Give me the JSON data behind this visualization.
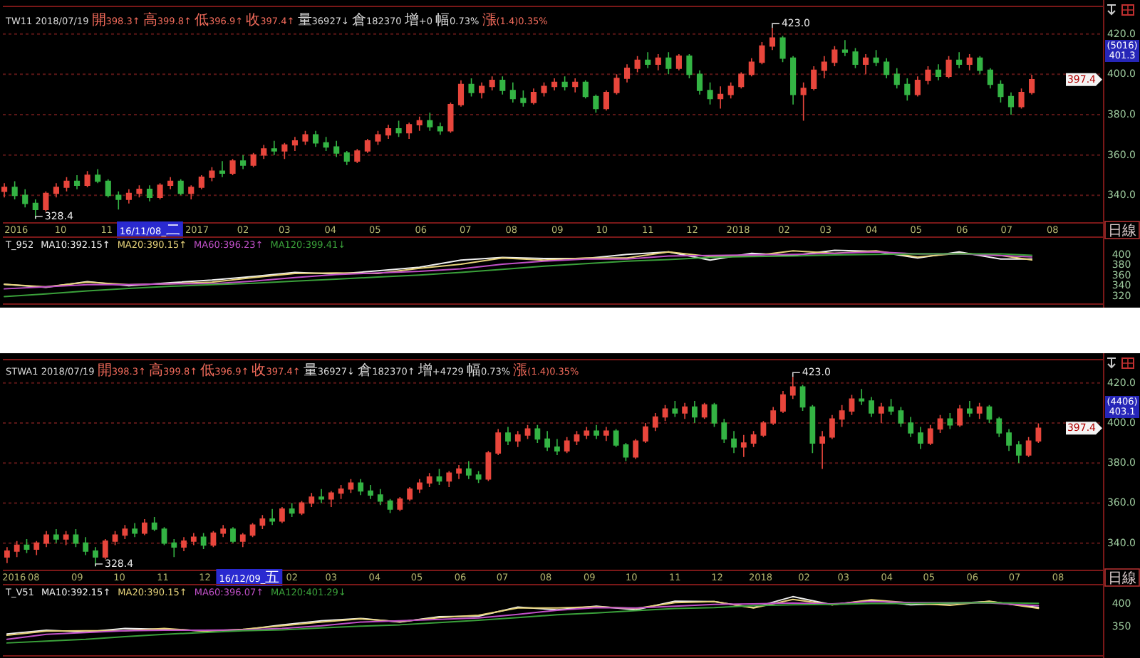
{
  "chart_data": [
    {
      "type": "candlestick",
      "subtitle": "TW11 2018/07/19 開398.3↑ 高399.8↑ 低396.9↑ 收397.4↑ 量36927↓ 倉182370 增+0 幅0.73% 漲(1.4)0.35%",
      "x": [
        "2016-08-24",
        "2016-08-31",
        "2016-09-07",
        "2016-09-14",
        "2016-09-21",
        "2016-09-28",
        "2016-10-05",
        "2016-10-12",
        "2016-10-19",
        "2016-10-26",
        "2016-11-02",
        "2016-11-09",
        "2016-11-16",
        "2016-11-23",
        "2016-11-30",
        "2016-12-07",
        "2016-12-14",
        "2016-12-21",
        "2016-12-28",
        "2017-01-04",
        "2017-01-11",
        "2017-01-18",
        "2017-01-25",
        "2017-02-01",
        "2017-02-08",
        "2017-02-15",
        "2017-02-22",
        "2017-03-01",
        "2017-03-08",
        "2017-03-15",
        "2017-03-22",
        "2017-03-29",
        "2017-04-05",
        "2017-04-12",
        "2017-04-19",
        "2017-04-26",
        "2017-05-03",
        "2017-05-10",
        "2017-05-17",
        "2017-05-24",
        "2017-05-31",
        "2017-06-07",
        "2017-06-14",
        "2017-06-21",
        "2017-06-28",
        "2017-07-05",
        "2017-07-12",
        "2017-07-19",
        "2017-07-26",
        "2017-08-02",
        "2017-08-09",
        "2017-08-16",
        "2017-08-23",
        "2017-08-30",
        "2017-09-06",
        "2017-09-13",
        "2017-09-20",
        "2017-09-27",
        "2017-10-04",
        "2017-10-11",
        "2017-10-18",
        "2017-10-25",
        "2017-11-01",
        "2017-11-08",
        "2017-11-15",
        "2017-11-22",
        "2017-11-29",
        "2017-12-06",
        "2017-12-13",
        "2017-12-20",
        "2017-12-27",
        "2018-01-03",
        "2018-01-10",
        "2018-01-17",
        "2018-01-24",
        "2018-01-31",
        "2018-02-07",
        "2018-02-14",
        "2018-02-21",
        "2018-02-28",
        "2018-03-07",
        "2018-03-14",
        "2018-03-21",
        "2018-03-28",
        "2018-04-04",
        "2018-04-11",
        "2018-04-18",
        "2018-04-25",
        "2018-05-02",
        "2018-05-09",
        "2018-05-16",
        "2018-05-23",
        "2018-05-30",
        "2018-06-06",
        "2018-06-13",
        "2018-06-20",
        "2018-06-27",
        "2018-07-04",
        "2018-07-11",
        "2018-07-18"
      ],
      "ohlc": [
        [
          342,
          346,
          339,
          344
        ],
        [
          344,
          347,
          338,
          340
        ],
        [
          340,
          343,
          334,
          336
        ],
        [
          336,
          338,
          328.4,
          333
        ],
        [
          333,
          342,
          332,
          341
        ],
        [
          341,
          346,
          339,
          344
        ],
        [
          344,
          349,
          342,
          347
        ],
        [
          347,
          350,
          343,
          345
        ],
        [
          345,
          352,
          344,
          350
        ],
        [
          350,
          353,
          346,
          347
        ],
        [
          347,
          348,
          339,
          340
        ],
        [
          340,
          342,
          333,
          338
        ],
        [
          338,
          343,
          336,
          341
        ],
        [
          341,
          345,
          339,
          343
        ],
        [
          343,
          345,
          337,
          339
        ],
        [
          339,
          346,
          338,
          345
        ],
        [
          345,
          349,
          343,
          347
        ],
        [
          347,
          348,
          340,
          341
        ],
        [
          341,
          345,
          338,
          344
        ],
        [
          344,
          350,
          343,
          349
        ],
        [
          349,
          354,
          347,
          352
        ],
        [
          352,
          357,
          349,
          351
        ],
        [
          351,
          358,
          350,
          357
        ],
        [
          357,
          360,
          353,
          355
        ],
        [
          355,
          361,
          354,
          360
        ],
        [
          360,
          365,
          358,
          363
        ],
        [
          363,
          367,
          360,
          362
        ],
        [
          362,
          366,
          358,
          365
        ],
        [
          365,
          369,
          362,
          367
        ],
        [
          367,
          372,
          365,
          370
        ],
        [
          370,
          372,
          364,
          366
        ],
        [
          366,
          369,
          362,
          364
        ],
        [
          364,
          367,
          359,
          361
        ],
        [
          361,
          362,
          355,
          357
        ],
        [
          357,
          363,
          356,
          362
        ],
        [
          362,
          368,
          361,
          367
        ],
        [
          367,
          372,
          365,
          370
        ],
        [
          370,
          375,
          368,
          373
        ],
        [
          373,
          377,
          369,
          371
        ],
        [
          371,
          376,
          368,
          375
        ],
        [
          375,
          379,
          372,
          377
        ],
        [
          377,
          381,
          372,
          374
        ],
        [
          374,
          376,
          370,
          372
        ],
        [
          372,
          386,
          371,
          385
        ],
        [
          385,
          397,
          384,
          395
        ],
        [
          395,
          398,
          389,
          391
        ],
        [
          391,
          396,
          388,
          394
        ],
        [
          394,
          399,
          392,
          397
        ],
        [
          397,
          399,
          390,
          392
        ],
        [
          392,
          396,
          386,
          388
        ],
        [
          388,
          392,
          384,
          386
        ],
        [
          386,
          393,
          385,
          391
        ],
        [
          391,
          396,
          389,
          394
        ],
        [
          394,
          398,
          392,
          396
        ],
        [
          396,
          399,
          392,
          394
        ],
        [
          394,
          398,
          391,
          396
        ],
        [
          396,
          397,
          388,
          389
        ],
        [
          389,
          390,
          381,
          383
        ],
        [
          383,
          392,
          382,
          391
        ],
        [
          391,
          400,
          390,
          398
        ],
        [
          398,
          405,
          396,
          403
        ],
        [
          403,
          409,
          401,
          407
        ],
        [
          407,
          411,
          403,
          405
        ],
        [
          405,
          410,
          402,
          408
        ],
        [
          408,
          411,
          400,
          403
        ],
        [
          403,
          410,
          402,
          409
        ],
        [
          409,
          410,
          398,
          400
        ],
        [
          400,
          402,
          390,
          392
        ],
        [
          392,
          396,
          385,
          388
        ],
        [
          388,
          394,
          383,
          390
        ],
        [
          390,
          396,
          388,
          394
        ],
        [
          394,
          401,
          393,
          400
        ],
        [
          400,
          408,
          399,
          406
        ],
        [
          406,
          416,
          405,
          414
        ],
        [
          414,
          423,
          412,
          418
        ],
        [
          418,
          419,
          406,
          408
        ],
        [
          408,
          409,
          385,
          390
        ],
        [
          390,
          396,
          377,
          393
        ],
        [
          393,
          404,
          392,
          402
        ],
        [
          402,
          409,
          398,
          406
        ],
        [
          406,
          414,
          404,
          412
        ],
        [
          412,
          417,
          409,
          411
        ],
        [
          411,
          413,
          403,
          405
        ],
        [
          405,
          410,
          400,
          408
        ],
        [
          408,
          412,
          404,
          406
        ],
        [
          406,
          408,
          398,
          400
        ],
        [
          400,
          403,
          393,
          395
        ],
        [
          395,
          398,
          387,
          390
        ],
        [
          390,
          399,
          389,
          397
        ],
        [
          397,
          404,
          395,
          402
        ],
        [
          402,
          405,
          397,
          399
        ],
        [
          399,
          409,
          398,
          407
        ],
        [
          407,
          411,
          403,
          405
        ],
        [
          405,
          410,
          402,
          408
        ],
        [
          408,
          409,
          400,
          402
        ],
        [
          402,
          403,
          393,
          395
        ],
        [
          395,
          397,
          386,
          389
        ],
        [
          389,
          391,
          380,
          384
        ],
        [
          384,
          393,
          383,
          391
        ],
        [
          391,
          399.8,
          390,
          397.4
        ]
      ],
      "xlim": [
        "2016-08-23",
        "2018-09-04"
      ],
      "xticks": [
        {
          "value": "2016-09-01",
          "label": "2016"
        },
        {
          "value": "2016-10-01",
          "label": "10"
        },
        {
          "value": "2016-11-01",
          "label": "11"
        },
        {
          "value": "2017-01-01",
          "label": "2017"
        },
        {
          "value": "2017-02-01",
          "label": "02"
        },
        {
          "value": "2017-03-01",
          "label": "03"
        },
        {
          "value": "2017-04-01",
          "label": "04"
        },
        {
          "value": "2017-05-01",
          "label": "05"
        },
        {
          "value": "2017-06-01",
          "label": "06"
        },
        {
          "value": "2017-07-01",
          "label": "07"
        },
        {
          "value": "2017-08-01",
          "label": "08"
        },
        {
          "value": "2017-09-01",
          "label": "09"
        },
        {
          "value": "2017-10-01",
          "label": "10"
        },
        {
          "value": "2017-11-01",
          "label": "11"
        },
        {
          "value": "2017-12-01",
          "label": "12"
        },
        {
          "value": "2018-01-01",
          "label": "2018"
        },
        {
          "value": "2018-02-01",
          "label": "02"
        },
        {
          "value": "2018-03-01",
          "label": "03"
        },
        {
          "value": "2018-04-01",
          "label": "04"
        },
        {
          "value": "2018-05-01",
          "label": "05"
        },
        {
          "value": "2018-06-01",
          "label": "06"
        },
        {
          "value": "2018-07-01",
          "label": "07"
        },
        {
          "value": "2018-08-01",
          "label": "08"
        }
      ],
      "ylim": [
        326,
        434
      ],
      "yticks": [
        {
          "value": 340,
          "label": "340.0"
        },
        {
          "value": 360,
          "label": "360.0"
        },
        {
          "value": 380,
          "label": "380.0"
        },
        {
          "value": 400,
          "label": "400.0"
        },
        {
          "value": 420,
          "label": "420.0"
        }
      ],
      "grid": "y",
      "annotations": [
        {
          "text": "423.0",
          "x": "2018-01-24",
          "y": 423.0
        },
        {
          "text": "328.4",
          "x": "2016-09-14",
          "y": 328.4
        },
        "16/11/08_二",
        "(5016)",
        "401.3",
        {
          "text": "397.4",
          "y": 397.4
        },
        "日線"
      ]
    },
    {
      "type": "line",
      "title": "T_952",
      "x": [
        "2016-08-24",
        "2016-09-21",
        "2016-10-19",
        "2016-11-16",
        "2016-12-14",
        "2017-01-11",
        "2017-02-08",
        "2017-03-08",
        "2017-04-05",
        "2017-05-03",
        "2017-05-31",
        "2017-06-28",
        "2017-07-26",
        "2017-08-23",
        "2017-09-20",
        "2017-10-18",
        "2017-11-15",
        "2017-12-13",
        "2018-01-10",
        "2018-02-07",
        "2018-03-07",
        "2018-04-04",
        "2018-05-02",
        "2018-05-30",
        "2018-06-27",
        "2018-07-18"
      ],
      "series": [
        {
          "name": "MA10:392.15↑",
          "color": "#f0f0f0",
          "values": [
            343,
            337,
            348,
            340,
            346,
            351,
            358,
            366,
            363,
            369,
            376,
            390,
            395,
            393,
            393,
            401,
            406,
            390,
            403,
            399,
            409,
            407,
            394,
            406,
            392,
            392.15
          ]
        },
        {
          "name": "MA20:390.15↑",
          "color": "#e6d27a",
          "values": [
            343,
            338,
            347,
            342,
            344,
            347,
            356,
            364,
            365,
            364,
            374,
            382,
            394,
            390,
            394,
            394,
            406,
            397,
            398,
            408,
            403,
            408,
            396,
            403,
            399,
            390.15
          ]
        },
        {
          "name": "MA60:396.23↑",
          "color": "#c050c8",
          "values": [
            334,
            338,
            342,
            342,
            344,
            344,
            349,
            356,
            362,
            365,
            368,
            373,
            382,
            388,
            392,
            392,
            398,
            399,
            400,
            401,
            403,
            406,
            402,
            402,
            399,
            396.23
          ]
        },
        {
          "name": "MA120:399.41↓",
          "color": "#3aa03a",
          "values": [
            319,
            324,
            330,
            335,
            339,
            342,
            345,
            349,
            353,
            357,
            361,
            366,
            372,
            378,
            383,
            388,
            391,
            395,
            397,
            398,
            400,
            401,
            402,
            402,
            402,
            399.41
          ]
        }
      ],
      "xlim": [
        "2016-08-23",
        "2018-09-04"
      ],
      "ylim": [
        303,
        436
      ],
      "yticks": [
        320,
        340,
        360,
        380,
        400
      ],
      "tick_labels": "y",
      "legend": "top left"
    },
    {
      "type": "candlestick",
      "subtitle": "STWA1 2018/07/19 開398.3↑ 高399.8↑ 低396.9↑ 收397.4↑ 量36927↓ 倉182370↑ 增+4729 幅0.73% 漲(1.4)0.35%",
      "x": [
        "2016-07-13",
        "2016-07-20",
        "2016-07-27",
        "2016-08-03",
        "2016-08-10",
        "2016-08-17",
        "2016-08-24",
        "2016-08-31",
        "2016-09-07",
        "2016-09-14",
        "2016-09-21",
        "2016-09-28",
        "2016-10-05",
        "2016-10-12",
        "2016-10-19",
        "2016-10-26",
        "2016-11-02",
        "2016-11-09",
        "2016-11-16",
        "2016-11-23",
        "2016-11-30",
        "2016-12-07",
        "2016-12-14",
        "2016-12-21",
        "2016-12-28",
        "2017-01-04",
        "2017-01-11",
        "2017-01-18",
        "2017-01-25",
        "2017-02-01",
        "2017-02-08",
        "2017-02-15",
        "2017-02-22",
        "2017-03-01",
        "2017-03-08",
        "2017-03-15",
        "2017-03-22",
        "2017-03-29",
        "2017-04-05",
        "2017-04-12",
        "2017-04-19",
        "2017-04-26",
        "2017-05-03",
        "2017-05-10",
        "2017-05-17",
        "2017-05-24",
        "2017-05-31",
        "2017-06-07",
        "2017-06-14",
        "2017-06-21",
        "2017-06-28",
        "2017-07-05",
        "2017-07-12",
        "2017-07-19",
        "2017-07-26",
        "2017-08-02",
        "2017-08-09",
        "2017-08-16",
        "2017-08-23",
        "2017-08-30",
        "2017-09-06",
        "2017-09-13",
        "2017-09-20",
        "2017-09-27",
        "2017-10-04",
        "2017-10-11",
        "2017-10-18",
        "2017-10-25",
        "2017-11-01",
        "2017-11-08",
        "2017-11-15",
        "2017-11-22",
        "2017-11-29",
        "2017-12-06",
        "2017-12-13",
        "2017-12-20",
        "2017-12-27",
        "2018-01-03",
        "2018-01-10",
        "2018-01-17",
        "2018-01-24",
        "2018-01-31",
        "2018-02-07",
        "2018-02-14",
        "2018-02-21",
        "2018-02-28",
        "2018-03-07",
        "2018-03-14",
        "2018-03-21",
        "2018-03-28",
        "2018-04-04",
        "2018-04-11",
        "2018-04-18",
        "2018-04-25",
        "2018-05-02",
        "2018-05-09",
        "2018-05-16",
        "2018-05-23",
        "2018-05-30",
        "2018-06-06",
        "2018-06-13",
        "2018-06-20",
        "2018-06-27",
        "2018-07-04",
        "2018-07-11",
        "2018-07-18"
      ],
      "ohlc": [
        [
          333,
          338,
          330,
          336
        ],
        [
          336,
          341,
          333,
          339
        ],
        [
          339,
          342,
          335,
          337
        ],
        [
          337,
          341,
          334,
          340
        ],
        [
          340,
          346,
          338,
          344
        ],
        [
          344,
          347,
          340,
          342
        ],
        [
          342,
          346,
          339,
          344
        ],
        [
          344,
          347,
          338,
          340
        ],
        [
          340,
          343,
          334,
          336
        ],
        [
          336,
          338,
          328.4,
          333
        ],
        [
          333,
          342,
          332,
          341
        ],
        [
          341,
          346,
          339,
          344
        ],
        [
          344,
          349,
          342,
          347
        ],
        [
          347,
          350,
          343,
          345
        ],
        [
          345,
          352,
          344,
          350
        ],
        [
          350,
          353,
          346,
          347
        ],
        [
          347,
          348,
          339,
          340
        ],
        [
          340,
          342,
          333,
          338
        ],
        [
          338,
          343,
          336,
          341
        ],
        [
          341,
          345,
          339,
          343
        ],
        [
          343,
          345,
          337,
          339
        ],
        [
          339,
          346,
          338,
          345
        ],
        [
          345,
          349,
          343,
          347
        ],
        [
          347,
          348,
          340,
          341
        ],
        [
          341,
          345,
          338,
          344
        ],
        [
          344,
          350,
          343,
          349
        ],
        [
          349,
          354,
          347,
          352
        ],
        [
          352,
          357,
          349,
          351
        ],
        [
          351,
          358,
          350,
          357
        ],
        [
          357,
          360,
          353,
          355
        ],
        [
          355,
          361,
          354,
          360
        ],
        [
          360,
          365,
          358,
          363
        ],
        [
          363,
          367,
          360,
          362
        ],
        [
          362,
          366,
          358,
          365
        ],
        [
          365,
          369,
          362,
          367
        ],
        [
          367,
          372,
          365,
          370
        ],
        [
          370,
          372,
          364,
          366
        ],
        [
          366,
          369,
          362,
          364
        ],
        [
          364,
          367,
          359,
          361
        ],
        [
          361,
          362,
          355,
          357
        ],
        [
          357,
          363,
          356,
          362
        ],
        [
          362,
          368,
          361,
          367
        ],
        [
          367,
          372,
          365,
          370
        ],
        [
          370,
          375,
          368,
          373
        ],
        [
          373,
          377,
          369,
          371
        ],
        [
          371,
          376,
          368,
          375
        ],
        [
          375,
          379,
          372,
          377
        ],
        [
          377,
          381,
          372,
          374
        ],
        [
          374,
          376,
          370,
          372
        ],
        [
          372,
          386,
          371,
          385
        ],
        [
          385,
          397,
          384,
          395
        ],
        [
          395,
          398,
          389,
          391
        ],
        [
          391,
          396,
          388,
          394
        ],
        [
          394,
          399,
          392,
          397
        ],
        [
          397,
          399,
          390,
          392
        ],
        [
          392,
          396,
          386,
          388
        ],
        [
          388,
          392,
          384,
          386
        ],
        [
          386,
          393,
          385,
          391
        ],
        [
          391,
          396,
          389,
          394
        ],
        [
          394,
          398,
          392,
          396
        ],
        [
          396,
          399,
          392,
          394
        ],
        [
          394,
          398,
          391,
          396
        ],
        [
          396,
          397,
          388,
          389
        ],
        [
          389,
          390,
          381,
          383
        ],
        [
          383,
          392,
          382,
          391
        ],
        [
          391,
          400,
          390,
          398
        ],
        [
          398,
          405,
          396,
          403
        ],
        [
          403,
          409,
          401,
          407
        ],
        [
          407,
          411,
          403,
          405
        ],
        [
          405,
          410,
          402,
          408
        ],
        [
          408,
          411,
          400,
          403
        ],
        [
          403,
          410,
          402,
          409
        ],
        [
          409,
          410,
          398,
          400
        ],
        [
          400,
          402,
          390,
          392
        ],
        [
          392,
          396,
          385,
          388
        ],
        [
          388,
          394,
          383,
          390
        ],
        [
          390,
          396,
          388,
          394
        ],
        [
          394,
          401,
          393,
          400
        ],
        [
          400,
          408,
          399,
          406
        ],
        [
          406,
          416,
          405,
          414
        ],
        [
          414,
          423,
          412,
          418
        ],
        [
          418,
          419,
          406,
          408
        ],
        [
          408,
          409,
          385,
          390
        ],
        [
          390,
          396,
          377,
          393
        ],
        [
          393,
          404,
          392,
          402
        ],
        [
          402,
          409,
          398,
          406
        ],
        [
          406,
          414,
          404,
          412
        ],
        [
          412,
          417,
          409,
          411
        ],
        [
          411,
          413,
          403,
          405
        ],
        [
          405,
          410,
          400,
          408
        ],
        [
          408,
          412,
          404,
          406
        ],
        [
          406,
          408,
          398,
          400
        ],
        [
          400,
          403,
          393,
          395
        ],
        [
          395,
          398,
          387,
          390
        ],
        [
          390,
          399,
          389,
          397
        ],
        [
          397,
          404,
          395,
          402
        ],
        [
          402,
          405,
          397,
          399
        ],
        [
          399,
          409,
          398,
          407
        ],
        [
          407,
          411,
          403,
          405
        ],
        [
          405,
          410,
          402,
          408
        ],
        [
          408,
          409,
          400,
          402
        ],
        [
          402,
          403,
          393,
          395
        ],
        [
          395,
          397,
          386,
          389
        ],
        [
          389,
          391,
          380,
          384
        ],
        [
          384,
          393,
          383,
          391
        ],
        [
          391,
          399.8,
          390,
          397.4
        ]
      ],
      "xlim": [
        "2016-07-10",
        "2018-09-02"
      ],
      "xticks": [
        {
          "value": "2016-07-18",
          "label": "2016"
        },
        {
          "value": "2016-08-01",
          "label": "08"
        },
        {
          "value": "2016-09-01",
          "label": "09"
        },
        {
          "value": "2016-10-01",
          "label": "10"
        },
        {
          "value": "2016-11-01",
          "label": "11"
        },
        {
          "value": "2016-12-01",
          "label": "12"
        },
        {
          "value": "2017-02-01",
          "label": "02"
        },
        {
          "value": "2017-03-01",
          "label": "03"
        },
        {
          "value": "2017-04-01",
          "label": "04"
        },
        {
          "value": "2017-05-01",
          "label": "05"
        },
        {
          "value": "2017-06-01",
          "label": "06"
        },
        {
          "value": "2017-07-01",
          "label": "07"
        },
        {
          "value": "2017-08-01",
          "label": "08"
        },
        {
          "value": "2017-09-01",
          "label": "09"
        },
        {
          "value": "2017-10-01",
          "label": "10"
        },
        {
          "value": "2017-11-01",
          "label": "11"
        },
        {
          "value": "2017-12-01",
          "label": "12"
        },
        {
          "value": "2018-01-01",
          "label": "2018"
        },
        {
          "value": "2018-02-01",
          "label": "02"
        },
        {
          "value": "2018-03-01",
          "label": "03"
        },
        {
          "value": "2018-04-01",
          "label": "04"
        },
        {
          "value": "2018-05-01",
          "label": "05"
        },
        {
          "value": "2018-06-01",
          "label": "06"
        },
        {
          "value": "2018-07-01",
          "label": "07"
        },
        {
          "value": "2018-08-01",
          "label": "08"
        }
      ],
      "ylim": [
        326,
        432
      ],
      "yticks": [
        {
          "value": 340,
          "label": "340.0"
        },
        {
          "value": 360,
          "label": "360.0"
        },
        {
          "value": 380,
          "label": "380.0"
        },
        {
          "value": 400,
          "label": "400.0"
        },
        {
          "value": 420,
          "label": "420.0"
        }
      ],
      "grid": "y",
      "annotations": [
        {
          "text": "423.0",
          "x": "2018-01-24",
          "y": 423.0
        },
        {
          "text": "328.4",
          "x": "2016-09-14",
          "y": 328.4
        },
        "16/12/09_五",
        "(4406)",
        "403.1",
        {
          "text": "397.4",
          "y": 397.4
        },
        "日線"
      ]
    },
    {
      "type": "line",
      "title": "T_V51",
      "x": [
        "2016-07-13",
        "2016-08-10",
        "2016-09-07",
        "2016-10-05",
        "2016-11-02",
        "2016-11-30",
        "2016-12-28",
        "2017-01-25",
        "2017-02-22",
        "2017-03-22",
        "2017-04-19",
        "2017-05-17",
        "2017-06-14",
        "2017-07-12",
        "2017-08-09",
        "2017-09-06",
        "2017-10-04",
        "2017-11-01",
        "2017-11-29",
        "2017-12-27",
        "2018-01-24",
        "2018-02-21",
        "2018-03-21",
        "2018-04-18",
        "2018-05-16",
        "2018-06-13",
        "2018-07-18"
      ],
      "series": [
        {
          "name": "MA10:392.15↑",
          "color": "#f0f0f0",
          "values": [
            334,
            342,
            338,
            346,
            344,
            341,
            343,
            354,
            363,
            368,
            360,
            372,
            373,
            393,
            387,
            395,
            387,
            406,
            405,
            392,
            416,
            398,
            408,
            398,
            401,
            405,
            392.15
          ]
        },
        {
          "name": "MA20:390.15↑",
          "color": "#e6d27a",
          "values": [
            331,
            340,
            341,
            341,
            346,
            340,
            344,
            352,
            360,
            367,
            361,
            370,
            375,
            391,
            391,
            394,
            390,
            403,
            405,
            391,
            410,
            398,
            409,
            402,
            397,
            406,
            390.15
          ]
        },
        {
          "name": "MA60:396.07↑",
          "color": "#c050c8",
          "values": [
            322,
            333,
            337,
            341,
            342,
            342,
            343,
            346,
            352,
            360,
            363,
            366,
            369,
            377,
            386,
            392,
            391,
            395,
            399,
            400,
            402,
            400,
            405,
            403,
            403,
            402,
            396.07
          ]
        },
        {
          "name": "MA120:401.29↓",
          "color": "#3aa03a",
          "values": [
            314,
            318,
            322,
            328,
            333,
            337,
            341,
            343,
            347,
            351,
            354,
            359,
            364,
            370,
            376,
            380,
            385,
            390,
            392,
            396,
            398,
            399,
            401,
            401,
            402,
            403,
            401.29
          ]
        }
      ],
      "xlim": [
        "2016-07-10",
        "2018-09-02"
      ],
      "ylim": [
        284,
        444
      ],
      "yticks": [
        350,
        400
      ],
      "tick_labels": "y",
      "legend": "top left"
    }
  ]
}
